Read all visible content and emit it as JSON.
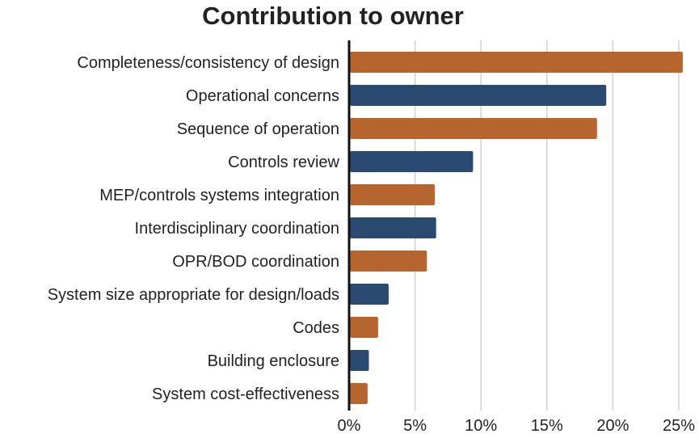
{
  "chart_data": {
    "type": "bar",
    "orientation": "horizontal",
    "title": "Contribution to owner",
    "xlabel": "",
    "ylabel": "",
    "xlim": [
      0,
      25
    ],
    "x_ticks": [
      0,
      5,
      10,
      15,
      20,
      25
    ],
    "x_tick_labels": [
      "0%",
      "5%",
      "10%",
      "15%",
      "20%",
      "25%"
    ],
    "grid": "vertical",
    "categories": [
      "Completeness/consistency of design",
      "Operational concerns",
      "Sequence of operation",
      "Controls review",
      "MEP/controls systems integration",
      "Interdisciplinary coordination",
      "OPR/BOD coordination",
      "System size appropriate for design/loads",
      "Codes",
      "Building enclosure",
      "System cost-effectiveness"
    ],
    "values": [
      25.3,
      19.5,
      18.8,
      9.4,
      6.5,
      6.6,
      5.9,
      3.0,
      2.2,
      1.5,
      1.4
    ],
    "bar_colors": [
      "#b5652d",
      "#2b4a72",
      "#b5652d",
      "#2b4a72",
      "#b5652d",
      "#2b4a72",
      "#b5652d",
      "#2b4a72",
      "#b5652d",
      "#2b4a72",
      "#b5652d"
    ],
    "unit": "%"
  }
}
